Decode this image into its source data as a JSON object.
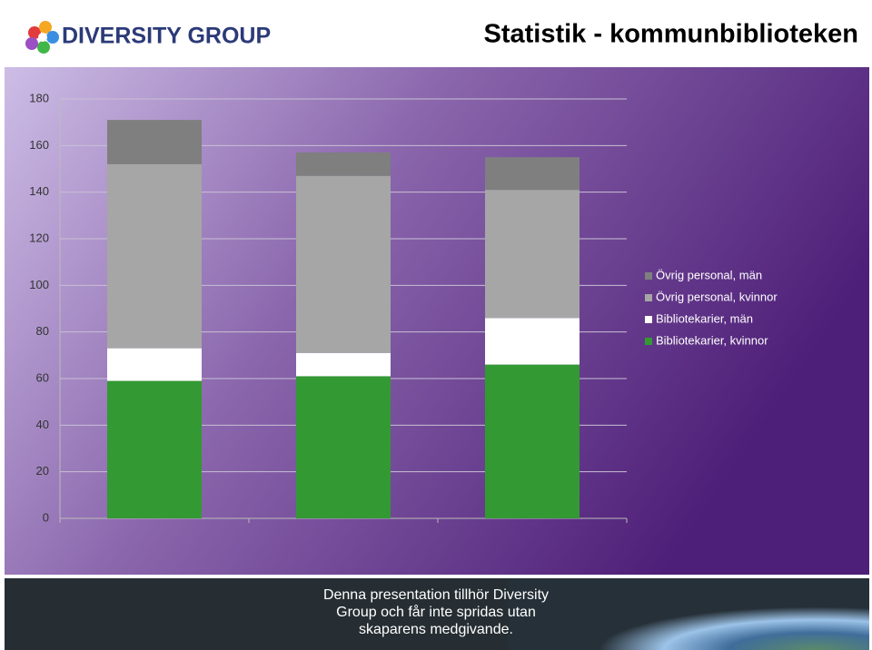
{
  "header": {
    "logo": "DIVERSITY GROUP",
    "title": "Statistik - kommunbiblioteken"
  },
  "chart_data": {
    "type": "stacked_bar",
    "categories": [
      null,
      null,
      null
    ],
    "series": [
      {
        "name": "Bibliotekarier, kvinnor",
        "color": "#339933",
        "values": [
          59,
          61,
          66
        ]
      },
      {
        "name": "Bibliotekarier, män",
        "color": "#ffffff",
        "values": [
          14,
          10,
          20
        ]
      },
      {
        "name": "Övrig personal, kvinnor",
        "color": "#a6a6a6",
        "values": [
          79,
          76,
          55
        ]
      },
      {
        "name": "Övrig personal, män",
        "color": "#7f7f7f",
        "values": [
          19,
          10,
          14
        ]
      }
    ],
    "ylim": [
      0,
      180
    ],
    "yticks": [
      0,
      20,
      40,
      60,
      80,
      100,
      120,
      140,
      160,
      180
    ],
    "grid": true,
    "legend": "right"
  },
  "footer": {
    "lines": [
      "Denna presentation tillhör Diversity",
      "Group och får inte spridas utan",
      "skaparens medgivande."
    ]
  }
}
